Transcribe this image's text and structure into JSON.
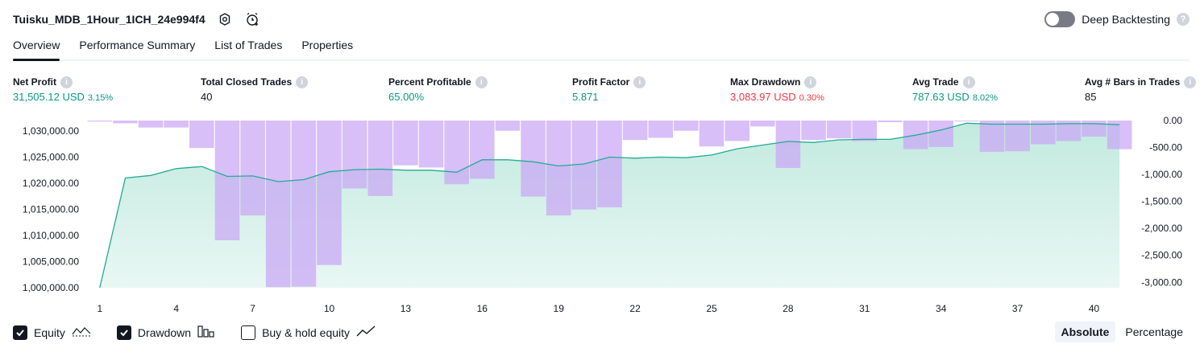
{
  "header": {
    "strategy_title": "Tuisku_MDB_1Hour_1ICH_24e994f4",
    "deep_backtesting_label": "Deep Backtesting",
    "icons": [
      "settings-icon",
      "alarm-add-icon",
      "help-icon"
    ]
  },
  "tabs": [
    {
      "label": "Overview",
      "active": true
    },
    {
      "label": "Performance Summary",
      "active": false
    },
    {
      "label": "List of Trades",
      "active": false
    },
    {
      "label": "Properties",
      "active": false
    }
  ],
  "metrics": {
    "net_profit": {
      "label": "Net Profit",
      "value": "31,505.12 USD",
      "sub": "3.15%"
    },
    "total_closed_trades": {
      "label": "Total Closed Trades",
      "value": "40"
    },
    "percent_profitable": {
      "label": "Percent Profitable",
      "value": "65.00%"
    },
    "profit_factor": {
      "label": "Profit Factor",
      "value": "5.871"
    },
    "max_drawdown": {
      "label": "Max Drawdown",
      "value": "3,083.97 USD",
      "sub": "0.30%"
    },
    "avg_trade": {
      "label": "Avg Trade",
      "value": "787.63 USD",
      "sub": "8.02%"
    },
    "avg_bars": {
      "label": "Avg # Bars in Trades",
      "value": "85"
    }
  },
  "colors": {
    "equity_line": "#22ab94",
    "equity_fill": "#bfe9dd",
    "drawdown_bar": "#c9a6f5",
    "positive": "#089981",
    "negative": "#f23645"
  },
  "chart_data": {
    "type": "line",
    "x": [
      1,
      2,
      3,
      4,
      5,
      6,
      7,
      8,
      9,
      10,
      11,
      12,
      13,
      14,
      15,
      16,
      17,
      18,
      19,
      20,
      21,
      22,
      23,
      24,
      25,
      26,
      27,
      28,
      29,
      30,
      31,
      32,
      33,
      34,
      35,
      36,
      37,
      38,
      39,
      40,
      41
    ],
    "x_tick_labels": [
      "1",
      "4",
      "7",
      "10",
      "13",
      "16",
      "19",
      "22",
      "25",
      "28",
      "31",
      "34",
      "37",
      "40"
    ],
    "left_axis": {
      "ylim": [
        1000000,
        1032000
      ],
      "tick_labels": [
        "1,030,000.00",
        "1,025,000.00",
        "1,020,000.00",
        "1,015,000.00",
        "1,010,000.00",
        "1,005,000.00",
        "1,000,000.00"
      ],
      "tick_values": [
        1030000,
        1025000,
        1020000,
        1015000,
        1010000,
        1005000,
        1000000
      ]
    },
    "right_axis": {
      "ylim": [
        -3100,
        0
      ],
      "tick_labels": [
        "0.00",
        "-500.00",
        "-1,000.00",
        "-1,500.00",
        "-2,000.00",
        "-2,500.00",
        "-3,000.00"
      ],
      "tick_values": [
        0,
        -500,
        -1000,
        -1500,
        -2000,
        -2500,
        -3000
      ]
    },
    "series": [
      {
        "name": "Equity",
        "axis": "left",
        "values": [
          1000000,
          1021000,
          1021500,
          1022800,
          1023200,
          1021300,
          1021400,
          1020300,
          1020700,
          1022200,
          1022600,
          1022700,
          1022500,
          1022500,
          1022100,
          1024500,
          1024500,
          1024100,
          1023300,
          1023700,
          1025000,
          1024800,
          1025000,
          1024900,
          1025400,
          1026600,
          1027300,
          1028000,
          1027800,
          1028300,
          1028400,
          1028400,
          1029200,
          1030200,
          1031500,
          1031300,
          1031300,
          1031300,
          1031400,
          1031400,
          1031200
        ]
      },
      {
        "name": "Drawdown",
        "axis": "right",
        "values": [
          -20,
          -50,
          -130,
          -130,
          -510,
          -2220,
          -1760,
          -3090,
          -3080,
          -2680,
          -1260,
          -1400,
          -830,
          -870,
          -1180,
          -1080,
          -190,
          -1410,
          -1760,
          -1650,
          -1610,
          -360,
          -320,
          -190,
          -480,
          -380,
          -110,
          -880,
          -360,
          -330,
          -380,
          -30,
          -530,
          -490,
          -10,
          -580,
          -570,
          -440,
          -380,
          -300,
          -530
        ]
      }
    ],
    "grid": false
  },
  "legend": {
    "equity": {
      "label": "Equity",
      "checked": true
    },
    "drawdown": {
      "label": "Drawdown",
      "checked": true
    },
    "buy_hold": {
      "label": "Buy & hold equity",
      "checked": false
    }
  },
  "view_switch": {
    "absolute": "Absolute",
    "percentage": "Percentage",
    "active": "absolute"
  }
}
